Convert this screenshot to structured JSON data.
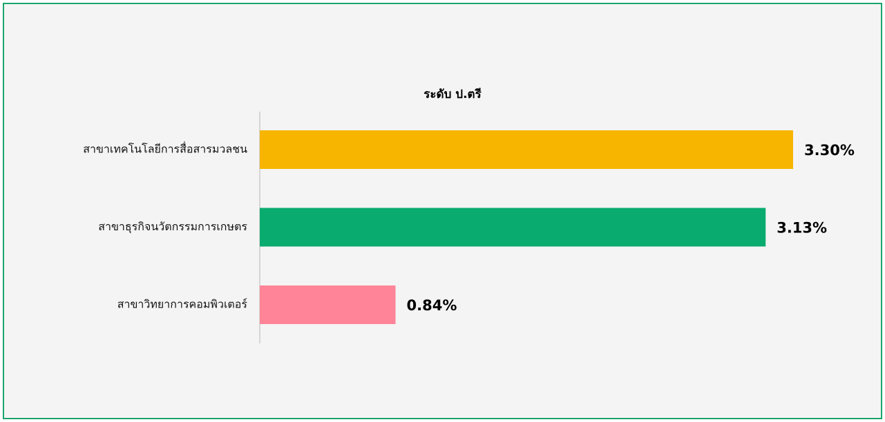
{
  "chart_data": {
    "type": "bar",
    "orientation": "horizontal",
    "title": "ระดับ ป.ตรี",
    "categories": [
      "สาขาเทคโนโลยีการสื่อสารมวลชน",
      "สาขาธุรกิจนวัตกรรมการเกษตร",
      "สาขาวิทยาการคอมพิวเตอร์"
    ],
    "values": [
      3.3,
      3.13,
      0.84
    ],
    "value_labels": [
      "3.30%",
      "3.13%",
      "0.84%"
    ],
    "colors": [
      "#f7b500",
      "#0aab6e",
      "#ff8497"
    ]
  }
}
